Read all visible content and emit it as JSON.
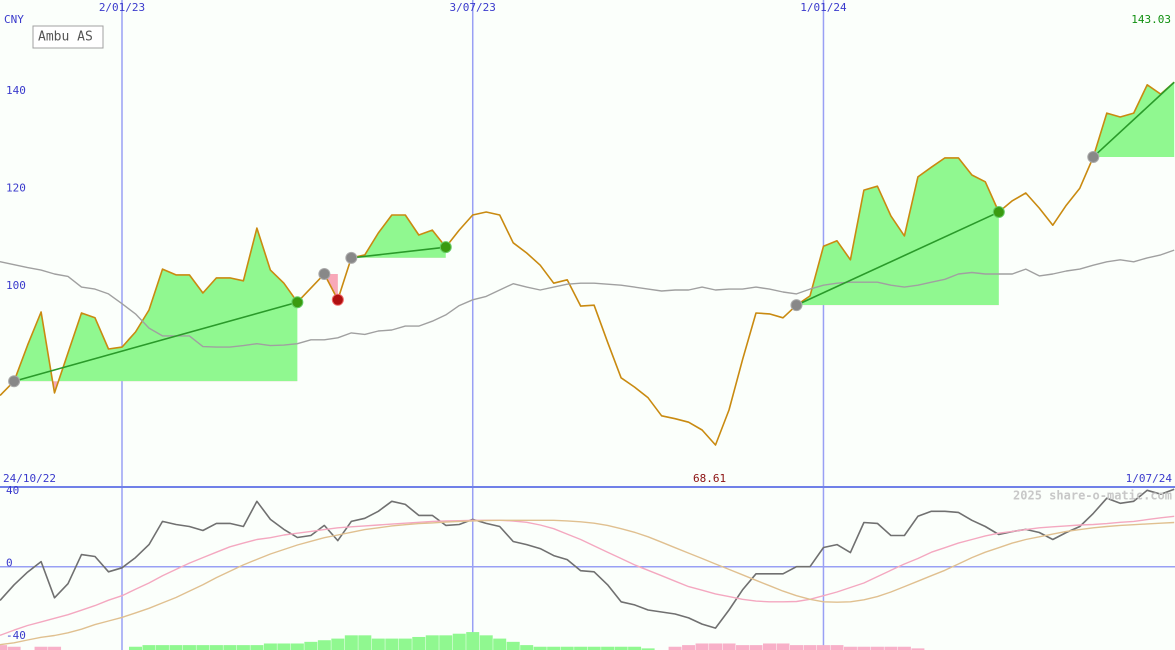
{
  "chart_data": [
    {
      "type": "line",
      "ylabel": "CNY",
      "categories": [
        "24/10/22",
        null,
        null,
        null,
        null,
        null,
        null,
        null,
        null,
        null,
        "2/01/23",
        null,
        null,
        null,
        null,
        null,
        null,
        null,
        null,
        null,
        null,
        null,
        null,
        null,
        null,
        null,
        null,
        null,
        null,
        null,
        null,
        null,
        null,
        null,
        null,
        null,
        "3/07/23",
        null,
        null,
        null,
        null,
        null,
        null,
        null,
        null,
        null,
        null,
        null,
        null,
        null,
        null,
        null,
        null,
        null,
        null,
        null,
        null,
        null,
        null,
        null,
        null,
        null,
        "1/01/24",
        null,
        null,
        null,
        null,
        null,
        null,
        null,
        null,
        null,
        null,
        null,
        null,
        null,
        null,
        null,
        null,
        null,
        null,
        null,
        null,
        null,
        null,
        null,
        null,
        null,
        "1/07/24"
      ],
      "series": [
        {
          "name": "Ambu AS",
          "color": "#c98a10",
          "values": [
            77.8,
            78.9,
            81.7,
            89.1,
            95.9,
            79.3,
            87.5,
            95.7,
            94.7,
            88.3,
            88.7,
            91.8,
            96.3,
            104.7,
            103.5,
            103.5,
            99.8,
            102.9,
            102.9,
            102.3,
            113.1,
            104.5,
            101.8,
            97.9,
            100.8,
            103.7,
            98.4,
            107,
            107.6,
            112.1,
            115.8,
            115.8,
            111.7,
            112.7,
            109.2,
            112.7,
            115.8,
            116.4,
            115.8,
            110.1,
            108,
            105.5,
            101.8,
            102.5,
            97.1,
            97.3,
            89.7,
            82.4,
            80.5,
            78.3,
            74.6,
            74,
            73.3,
            71.7,
            68.61,
            75.8,
            86.1,
            95.7,
            95.5,
            94.7,
            97.3,
            99.2,
            109.4,
            110.5,
            106.6,
            120.9,
            121.7,
            115.6,
            111.5,
            123.6,
            125.6,
            127.5,
            127.5,
            124,
            122.6,
            116.4,
            118.7,
            120.3,
            117.2,
            113.7,
            117.8,
            121.3,
            127.7,
            136.7,
            135.9,
            136.7,
            142.5,
            140.6,
            143.03
          ]
        },
        {
          "color": "#a0a0a0",
          "values": [
            106.8,
            106.2,
            105.6,
            105,
            104.5,
            103.7,
            103.2,
            101,
            100.6,
            99.6,
            97.6,
            95.5,
            92.6,
            91,
            91,
            91,
            88.8,
            88.7,
            88.7,
            89,
            89.4,
            89,
            89.1,
            89.4,
            90.2,
            90.2,
            90.6,
            91.6,
            91.3,
            92,
            92.2,
            93,
            93,
            94,
            95.3,
            97.2,
            98.4,
            99.1,
            100.4,
            101.7,
            101,
            100.4,
            101,
            101.6,
            101.8,
            101.8,
            101.6,
            101.4,
            101,
            100.6,
            100.2,
            100.4,
            100.4,
            101,
            100.4,
            100.6,
            100.6,
            101,
            100.6,
            100,
            99.6,
            100.6,
            101.4,
            101.8,
            102,
            102,
            102,
            101.4,
            101,
            101.4,
            102,
            102.6,
            103.7,
            104,
            103.7,
            103.7,
            103.7,
            104.7,
            103.3,
            103.7,
            104.3,
            104.7,
            105.5,
            106.2,
            106.6,
            106.2,
            107,
            107.6,
            108.6
          ]
        }
      ],
      "ylim": [
        60,
        156.82
      ],
      "yticks": [
        {
          "value": 80,
          "label": null
        },
        100,
        120,
        140
      ],
      "grid": true,
      "grid_color": "#99a0f4",
      "signals": [
        {
          "start": 2,
          "end": 23
        },
        {
          "start": 25,
          "end": 26
        },
        {
          "start": 27,
          "end": 34
        },
        {
          "start": 60,
          "end": 75
        },
        {
          "start": 82,
          "end": 88
        }
      ],
      "signal_colors": {
        "gain": "#90f890",
        "loss": "#f8a8b8",
        "trend": "#2a9a2a",
        "entry": "#888888",
        "exit_gain": "#3a9a10",
        "exit_loss": "#b01010"
      },
      "last_label": 143.03,
      "low_label": 68.61
    },
    {
      "type": "line",
      "series": [
        {
          "color": "#707070",
          "values": [
            -22,
            -18.3,
            -10,
            -3,
            2.8,
            -17.2,
            -9.4,
            6.7,
            5.6,
            -2.8,
            -0.6,
            5,
            12.2,
            25,
            23.3,
            22.2,
            20,
            23.9,
            23.9,
            22.2,
            36.1,
            26.1,
            20.6,
            16.1,
            17.2,
            22.8,
            14.4,
            25,
            26.7,
            30.6,
            36.1,
            34.4,
            28.3,
            28.3,
            22.8,
            23.3,
            26.1,
            23.9,
            22.2,
            13.9,
            12.2,
            10,
            6.1,
            3.9,
            -2.2,
            -2.8,
            -10,
            -19.4,
            -21.1,
            -23.9,
            -25,
            -26.1,
            -28.3,
            -31.7,
            -33.9,
            -23.9,
            -12.8,
            -3.9,
            -3.9,
            -3.9,
            0,
            0,
            10.6,
            12.2,
            7.8,
            24.4,
            23.9,
            17.2,
            17.2,
            27.8,
            30.6,
            30.6,
            30,
            25.6,
            22.2,
            17.8,
            19.4,
            20.6,
            18.9,
            15,
            18.9,
            22.2,
            29.4,
            37.8,
            35,
            36.1,
            42.2,
            40,
            42.8
          ]
        },
        {
          "color": "#f4a8c0",
          "values": [
            -39,
            -37.8,
            -35,
            -32.5,
            -30.5,
            -28.5,
            -26.5,
            -24,
            -21.5,
            -18.5,
            -16,
            -12.5,
            -9,
            -5,
            -1.5,
            2,
            5,
            8,
            11,
            13,
            15,
            16,
            17.5,
            18.5,
            19.5,
            20.5,
            21.5,
            22,
            22.5,
            23,
            23.5,
            24,
            24.5,
            25,
            25.2,
            25.4,
            25.6,
            25.6,
            25.6,
            25.2,
            24.5,
            23,
            21,
            18,
            15,
            11.5,
            8,
            4.5,
            1,
            -2,
            -5,
            -8,
            -11,
            -13,
            -15,
            -16.5,
            -18,
            -19,
            -19.4,
            -19.4,
            -19.2,
            -18,
            -16,
            -14,
            -11.5,
            -9,
            -5.5,
            -2,
            1.5,
            4.5,
            8,
            10.5,
            13,
            15,
            17,
            18.5,
            19.5,
            20.5,
            21.5,
            22,
            22.5,
            23,
            23.3,
            23.8,
            24.5,
            25,
            26,
            27,
            27.8
          ]
        },
        {
          "color": "#e0c090",
          "values": [
            -44,
            -43,
            -42,
            -40.5,
            -39,
            -38,
            -36.5,
            -34.5,
            -32,
            -30,
            -28,
            -25.5,
            -23,
            -20,
            -17,
            -13.5,
            -10,
            -6,
            -2.5,
            1,
            4,
            7,
            9.5,
            12,
            14,
            16,
            17.5,
            19,
            20.5,
            21.5,
            22.5,
            23.2,
            23.8,
            24.2,
            24.6,
            25,
            25.3,
            25.5,
            25.6,
            25.6,
            25.6,
            25.6,
            25.6,
            25.3,
            24.8,
            24,
            22.8,
            21,
            19,
            16.5,
            13.5,
            10.5,
            7.5,
            4.5,
            1.5,
            -1.5,
            -4.5,
            -7.5,
            -10.5,
            -13.5,
            -16,
            -18,
            -19.4,
            -19.6,
            -19.4,
            -18.3,
            -16.5,
            -14,
            -11,
            -8,
            -5,
            -2,
            1.5,
            5,
            8,
            10.5,
            13,
            15,
            16.5,
            18,
            19.5,
            20.5,
            21.5,
            22.2,
            22.8,
            23.2,
            23.6,
            24,
            24.4
          ]
        },
        {
          "type": "bar",
          "axis": "y2",
          "color": "#90f890",
          "negative_color": "#f8b0c8",
          "values": [
            -3,
            -3,
            -2,
            0,
            -2,
            -2,
            0,
            0,
            0,
            0,
            0,
            2,
            3,
            3,
            3,
            3,
            3,
            3,
            3,
            3,
            3,
            4,
            4,
            4,
            5,
            6,
            7,
            9,
            9,
            7,
            7,
            7,
            8,
            9,
            9,
            10,
            11,
            9,
            7,
            5,
            3,
            2,
            2,
            2,
            2,
            2,
            2,
            2,
            2,
            1,
            0,
            -2,
            -3,
            -4,
            -4,
            -4,
            -3,
            -3,
            -4,
            -4,
            -3,
            -3,
            -3,
            -3,
            -2,
            -2,
            -2,
            -2,
            -2,
            -1,
            0,
            0,
            0,
            0,
            0,
            0,
            0,
            0,
            0,
            0,
            0,
            0,
            0,
            0,
            0,
            0,
            0,
            0,
            0
          ]
        }
      ],
      "ylim": [
        -46,
        44
      ],
      "yticks": [
        -40,
        0,
        40
      ],
      "y2lim": [
        0,
        100
      ],
      "watermark": "2025 share-o-matic.com"
    }
  ]
}
